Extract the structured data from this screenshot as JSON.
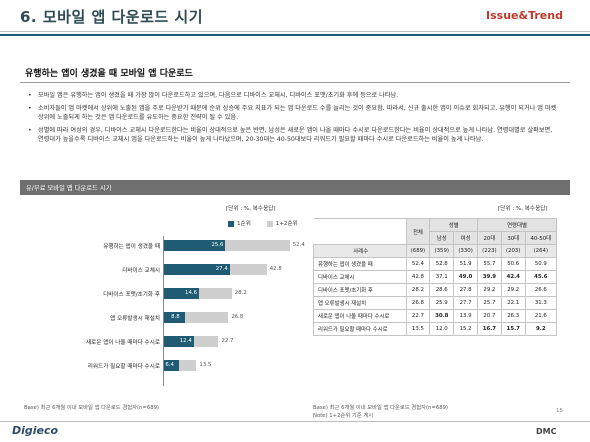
{
  "header": {
    "title": "6. 모바일 앱 다운로드 시기",
    "brand": "Issue&Trend"
  },
  "section": {
    "subtitle": "유행하는 앱이 생겼을 때 모바일 앱 다운로드",
    "bullets": [
      "모바일 앱은 유행하는 앱이 생겼을 때 가장 많이 다운로드하고 있으며, 다음으로 디바이스 교체시, 디바이스 포맷/초기화 후에 등으로 나타남.",
      "소비자들이 앱 마켓에서 상위에 노출된 앱을 주로 다운받기 때문에 순위 상승에 주요 지표가 되는 앱 다운로드 수를 늘리는 것이 중요함. 따라서, 신규 출시한 앱이 이슈로 회자되고, 유행이 되거나 앱 마켓 상위에 노출되게 하는 것은 앱 다운로드를 유도하는 중요한 전략이 될 수 있음.",
      "성별에 따라 여성의 경우, 디바이스 교체시 다운로드한다는 비율이 상대적으로 높은 반면, 남성은 새로운 앱이 나올 때마다 수시로 다운로드한다는 비율이 상대적으로 높게 나타남. 연령대별로 살펴보면, 연령대가 높을수록 디바이스 교체시 앱을 다운로드하는 비율이 높게 나타났으며, 20-30대는 40-50대보다 리워드가 필요할 때마다 수시로 다운로드하는 비율이 높게 나타남."
    ]
  },
  "panel": {
    "title": "유/무료 모바일 앱 다운로드 시기",
    "unit_left": "[단위 : %, 복수응답]",
    "unit_right": "[단위 : %, 복수응답]"
  },
  "chart_data": {
    "type": "bar",
    "orientation": "horizontal",
    "categories": [
      "유행하는 앱이 생겼을 때",
      "디바이스 교체시",
      "디바이스 포맷/초기화 후",
      "앱 오류발생시 재설치",
      "새로운 앱이 나올 때마다 수시로",
      "리워드가 필요할 때마다 수시로"
    ],
    "series": [
      {
        "name": "1순위",
        "values": [
          25.6,
          27.4,
          14.6,
          8.8,
          12.4,
          6.4
        ],
        "color": "#1f5c74"
      },
      {
        "name": "1+2순위",
        "values": [
          52.4,
          42.8,
          28.2,
          26.8,
          22.7,
          13.5
        ],
        "color": "#cfcfcf"
      }
    ],
    "xlim": [
      0,
      60
    ],
    "legend_position": "top-right"
  },
  "table": {
    "header_total": "전체",
    "header_gender": "성별",
    "header_age": "연령대별",
    "header_male": "남성",
    "header_female": "여성",
    "header_20": "20대",
    "header_30": "30대",
    "header_4050": "40-50대",
    "rows": [
      {
        "label": "사례수",
        "total": "(689)",
        "male": "(359)",
        "female": "(330)",
        "a20": "(223)",
        "a30": "(203)",
        "a4050": "(264)"
      },
      {
        "label": "유행하는 앱이 생겼을 때",
        "total": "52.4",
        "male": "52.8",
        "female": "51.9",
        "a20": "55.7",
        "a30": "50.6",
        "a4050": "50.9"
      },
      {
        "label": "디바이스 교체시",
        "total": "42.8",
        "male": "37.1",
        "female": "49.0",
        "a20": "39.9",
        "a30": "42.4",
        "a4050": "45.6"
      },
      {
        "label": "디바이스 포맷/초기화 후",
        "total": "28.2",
        "male": "28.6",
        "female": "27.8",
        "a20": "29.2",
        "a30": "29.2",
        "a4050": "26.6"
      },
      {
        "label": "앱 오류발생시 재설치",
        "total": "26.8",
        "male": "25.9",
        "female": "27.7",
        "a20": "25.7",
        "a30": "22.1",
        "a4050": "31.3"
      },
      {
        "label": "새로운 앱이 나올 때마다 수시로",
        "total": "22.7",
        "male": "30.8",
        "female": "13.9",
        "a20": "20.7",
        "a30": "26.3",
        "a4050": "21.6"
      },
      {
        "label": "리워드가 필요할 때마다 수시로",
        "total": "13.5",
        "male": "12.0",
        "female": "15.2",
        "a20": "16.7",
        "a30": "15.7",
        "a4050": "9.2"
      }
    ]
  },
  "footnotes": {
    "left_base": "Base) 최근 6개월 이내 모바일 앱 다운로드 경험자(n=689)",
    "right_base": "Base) 최근 6개월 이내 모바일 앱 다운로드 경험자(n=689)",
    "right_note": "Note) 1+2순위 기준 게시"
  },
  "footer": {
    "logo_left": "Digieco",
    "logo_right": "DMC",
    "page": "15"
  }
}
